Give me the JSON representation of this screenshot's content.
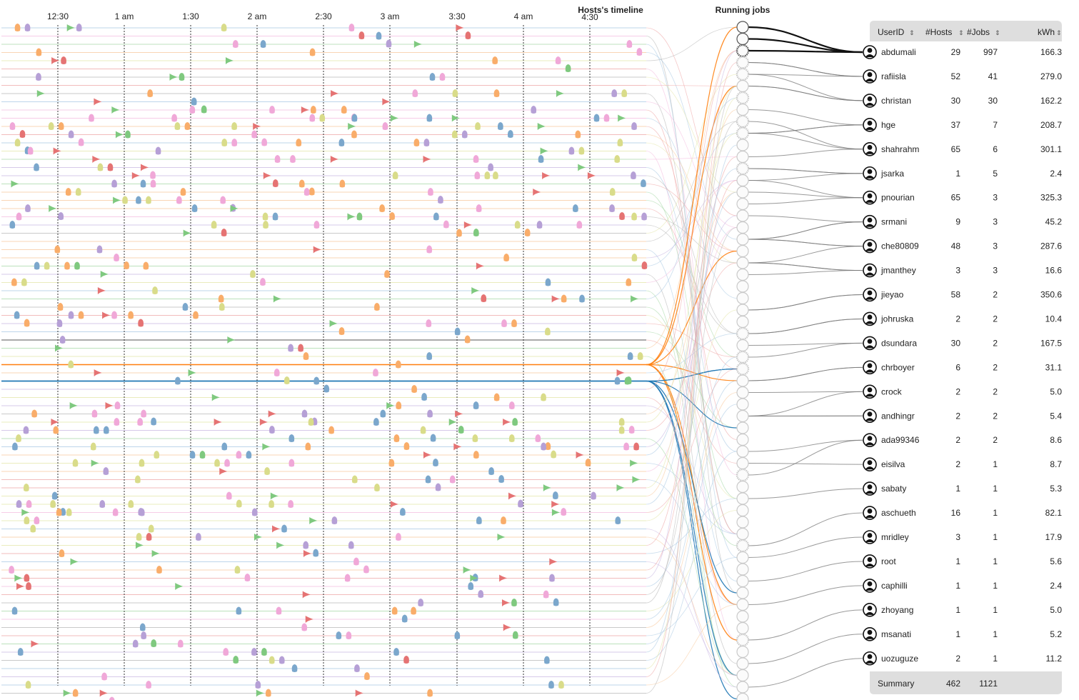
{
  "timeline": {
    "title": "Hosts's timeline",
    "ticks": [
      "12:30",
      "1 am",
      "1:30",
      "2 am",
      "2:30",
      "3 am",
      "3:30",
      "4 am",
      "4:30"
    ]
  },
  "jobs_panel": {
    "title": "Running jobs"
  },
  "table": {
    "headers": {
      "user": "UserID",
      "hosts": "#Hosts",
      "jobs": "#Jobs",
      "kwh": "kWh"
    },
    "sort_glyph": "⇕",
    "rows": [
      {
        "user": "abdumali",
        "hosts": "29",
        "jobs": "997",
        "kwh": "166.3"
      },
      {
        "user": "rafiisla",
        "hosts": "52",
        "jobs": "41",
        "kwh": "279.0"
      },
      {
        "user": "christan",
        "hosts": "30",
        "jobs": "30",
        "kwh": "162.2"
      },
      {
        "user": "hge",
        "hosts": "37",
        "jobs": "7",
        "kwh": "208.7"
      },
      {
        "user": "shahrahm",
        "hosts": "65",
        "jobs": "6",
        "kwh": "301.1"
      },
      {
        "user": "jsarka",
        "hosts": "1",
        "jobs": "5",
        "kwh": "2.4"
      },
      {
        "user": "pnourian",
        "hosts": "65",
        "jobs": "3",
        "kwh": "325.3"
      },
      {
        "user": "srmani",
        "hosts": "9",
        "jobs": "3",
        "kwh": "45.2"
      },
      {
        "user": "che80809",
        "hosts": "48",
        "jobs": "3",
        "kwh": "287.6"
      },
      {
        "user": "jmanthey",
        "hosts": "3",
        "jobs": "3",
        "kwh": "16.6"
      },
      {
        "user": "jieyao",
        "hosts": "58",
        "jobs": "2",
        "kwh": "350.6"
      },
      {
        "user": "johruska",
        "hosts": "2",
        "jobs": "2",
        "kwh": "10.4"
      },
      {
        "user": "dsundara",
        "hosts": "30",
        "jobs": "2",
        "kwh": "167.5"
      },
      {
        "user": "chrboyer",
        "hosts": "6",
        "jobs": "2",
        "kwh": "31.1"
      },
      {
        "user": "crock",
        "hosts": "2",
        "jobs": "2",
        "kwh": "5.0"
      },
      {
        "user": "andhingr",
        "hosts": "2",
        "jobs": "2",
        "kwh": "5.4"
      },
      {
        "user": "ada99346",
        "hosts": "2",
        "jobs": "2",
        "kwh": "8.6"
      },
      {
        "user": "eisilva",
        "hosts": "2",
        "jobs": "1",
        "kwh": "8.7"
      },
      {
        "user": "sabaty",
        "hosts": "1",
        "jobs": "1",
        "kwh": "5.3"
      },
      {
        "user": "aschueth",
        "hosts": "16",
        "jobs": "1",
        "kwh": "82.1"
      },
      {
        "user": "mridley",
        "hosts": "3",
        "jobs": "1",
        "kwh": "17.9"
      },
      {
        "user": "root",
        "hosts": "1",
        "jobs": "1",
        "kwh": "5.6"
      },
      {
        "user": "caphilli",
        "hosts": "1",
        "jobs": "1",
        "kwh": "2.4"
      },
      {
        "user": "zhoyang",
        "hosts": "1",
        "jobs": "1",
        "kwh": "5.0"
      },
      {
        "user": "msanati",
        "hosts": "1",
        "jobs": "1",
        "kwh": "5.2"
      },
      {
        "user": "uozuguze",
        "hosts": "2",
        "jobs": "1",
        "kwh": "11.2"
      }
    ],
    "summary": {
      "label": "Summary",
      "hosts": "462",
      "jobs": "1121"
    }
  },
  "colors": {
    "blue": "#7ba7cc",
    "orange": "#f9ad6a",
    "red": "#e57373",
    "green": "#7fc97f",
    "purple": "#b6a0d6",
    "olive": "#d9dc8a",
    "pink": "#f0a8d8",
    "highlight_orange": "#ff7f0e",
    "highlight_blue": "#1f77b4"
  },
  "chart_data": {
    "type": "scatter",
    "title": "Hosts's timeline",
    "x_ticks": [
      "12:30",
      "1 am",
      "1:30",
      "2 am",
      "2:30",
      "3 am",
      "3:30",
      "4 am",
      "4:30"
    ],
    "series": [
      {
        "color": "blue",
        "points": [
          [
            1,
            3
          ],
          [
            1,
            4
          ],
          [
            2,
            13
          ],
          [
            3,
            5
          ],
          [
            3,
            8
          ],
          [
            4,
            2
          ],
          [
            5,
            7
          ],
          [
            6,
            8
          ],
          [
            7,
            3
          ],
          [
            7,
            4
          ],
          [
            8,
            6
          ],
          [
            1,
            41
          ],
          [
            1,
            42
          ],
          [
            2,
            50
          ],
          [
            3,
            56
          ]
        ]
      },
      {
        "color": "orange",
        "points": [
          [
            2,
            9
          ],
          [
            2,
            10
          ],
          [
            2,
            11
          ],
          [
            3,
            12
          ],
          [
            3,
            13
          ],
          [
            4,
            9
          ],
          [
            5,
            9
          ],
          [
            6,
            13
          ],
          [
            7,
            14
          ],
          [
            8,
            15
          ],
          [
            1,
            44
          ],
          [
            2,
            44
          ],
          [
            3,
            45
          ],
          [
            4,
            46
          ]
        ]
      },
      {
        "color": "red",
        "points": [
          [
            2,
            9
          ],
          [
            2,
            10
          ],
          [
            2,
            11
          ],
          [
            2,
            14
          ],
          [
            2,
            15
          ],
          [
            3,
            11
          ],
          [
            4,
            10
          ],
          [
            4,
            14
          ],
          [
            5,
            10
          ],
          [
            6,
            11
          ],
          [
            7,
            9
          ],
          [
            8,
            10
          ]
        ]
      },
      {
        "color": "green",
        "points": [
          [
            3,
            22
          ],
          [
            5,
            41
          ],
          [
            6,
            41
          ],
          [
            7,
            41
          ],
          [
            8,
            41
          ],
          [
            9,
            41
          ]
        ]
      },
      {
        "color": "purple",
        "points": [
          [
            1,
            44
          ],
          [
            2,
            44
          ],
          [
            3,
            44
          ],
          [
            4,
            44
          ],
          [
            5,
            44
          ],
          [
            6,
            44
          ]
        ]
      },
      {
        "color": "olive",
        "points": [
          [
            1,
            3
          ],
          [
            2,
            3
          ],
          [
            3,
            3
          ],
          [
            4,
            4
          ],
          [
            5,
            4
          ],
          [
            6,
            4
          ]
        ]
      },
      {
        "color": "pink",
        "points": [
          [
            5,
            17
          ],
          [
            8,
            23
          ],
          [
            9,
            23
          ],
          [
            9,
            35
          ]
        ]
      }
    ]
  }
}
